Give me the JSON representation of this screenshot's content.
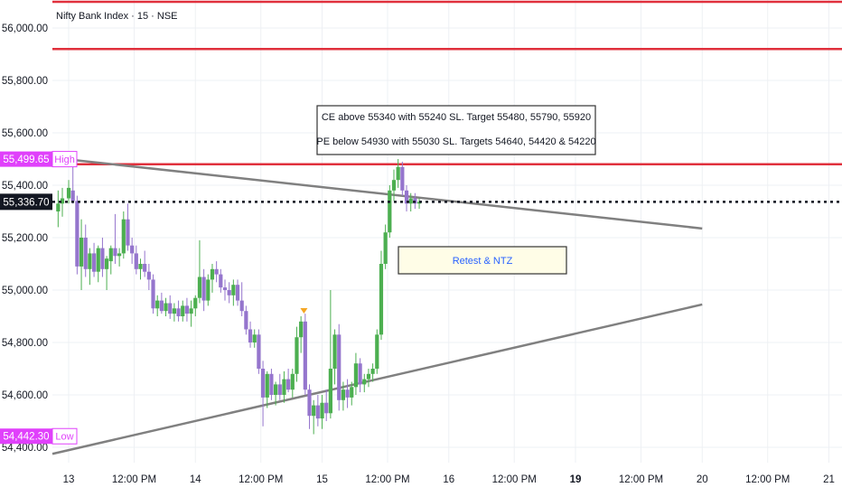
{
  "chart_data": {
    "type": "candlestick",
    "title": "Nifty Bank Index · 15 · NSE",
    "ylim": [
      54380,
      56160
    ],
    "y_ticks": [
      {
        "value": 56000,
        "label": "56,000.00"
      },
      {
        "value": 55800,
        "label": "55,800.00"
      },
      {
        "value": 55600,
        "label": "55,600.00"
      },
      {
        "value": 55400,
        "label": "55,400.00"
      },
      {
        "value": 55200,
        "label": "55,200.00"
      },
      {
        "value": 55000,
        "label": "55,000.00"
      },
      {
        "value": 54800,
        "label": "54,800.00"
      },
      {
        "value": 54600,
        "label": "54,600.00"
      },
      {
        "value": 54400,
        "label": "54,400.00"
      }
    ],
    "x_ticks": [
      {
        "t": 0.3,
        "label": "13",
        "bold": false
      },
      {
        "t": 1.85,
        "label": "12:00 PM",
        "bold": false
      },
      {
        "t": 3.3,
        "label": "14",
        "bold": false
      },
      {
        "t": 4.85,
        "label": "12:00 PM",
        "bold": false
      },
      {
        "t": 6.3,
        "label": "15",
        "bold": false
      },
      {
        "t": 7.85,
        "label": "12:00 PM",
        "bold": false
      },
      {
        "t": 9.3,
        "label": "16",
        "bold": false
      },
      {
        "t": 10.85,
        "label": "12:00 PM",
        "bold": false
      },
      {
        "t": 12.3,
        "label": "19",
        "bold": true
      },
      {
        "t": 13.85,
        "label": "12:00 PM",
        "bold": false
      },
      {
        "t": 15.3,
        "label": "20",
        "bold": false
      },
      {
        "t": 16.85,
        "label": "12:00 PM",
        "bold": false
      },
      {
        "t": 18.3,
        "label": "21",
        "bold": false
      }
    ],
    "colors": {
      "up": "#4caf50",
      "down": "#9575cd",
      "resistance": "#e0303c",
      "trendline": "#808080",
      "badge": "#e040fb",
      "current": "#131722"
    },
    "horizontal_lines": [
      {
        "y": 56100,
        "color": "#e0303c"
      },
      {
        "y": 55920,
        "color": "#e0303c"
      },
      {
        "y": 55480,
        "color": "#e0303c"
      }
    ],
    "trendlines": [
      {
        "from": [
          0.0,
          55505
        ],
        "to": [
          15.3,
          55235
        ]
      },
      {
        "from": [
          0.0,
          54375
        ],
        "to": [
          15.3,
          54945
        ]
      }
    ],
    "current_price": {
      "value": 55336.7,
      "label": "55,336.70"
    },
    "high_badge": {
      "value": 55499.65,
      "label": "55,499.65",
      "tag": "High"
    },
    "low_badge": {
      "value": 54442.3,
      "label": "54,442.30",
      "tag": "Low"
    },
    "annotations": [
      {
        "text": "CE above 55340 with 55240 SL. Target 55480, 55790, 55920"
      },
      {
        "text": "PE below 54930 with 55030 SL. Targets 54640, 54420 & 54220"
      },
      {
        "text": "Retest & NTZ"
      }
    ],
    "candles": [
      {
        "t": 0.05,
        "o": 55300,
        "h": 55380,
        "l": 55240,
        "c": 55330
      },
      {
        "t": 0.15,
        "o": 55330,
        "h": 55390,
        "l": 55280,
        "c": 55350
      },
      {
        "t": 0.3,
        "o": 55350,
        "h": 55420,
        "l": 55330,
        "c": 55390
      },
      {
        "t": 0.4,
        "o": 55380,
        "h": 55500,
        "l": 55330,
        "c": 55340
      },
      {
        "t": 0.5,
        "o": 55340,
        "h": 55360,
        "l": 55060,
        "c": 55090
      },
      {
        "t": 0.6,
        "o": 55090,
        "h": 55270,
        "l": 55000,
        "c": 55200
      },
      {
        "t": 0.7,
        "o": 55200,
        "h": 55250,
        "l": 55050,
        "c": 55080
      },
      {
        "t": 0.8,
        "o": 55080,
        "h": 55160,
        "l": 55020,
        "c": 55140
      },
      {
        "t": 0.9,
        "o": 55140,
        "h": 55180,
        "l": 55050,
        "c": 55070
      },
      {
        "t": 1.0,
        "o": 55070,
        "h": 55170,
        "l": 55030,
        "c": 55160
      },
      {
        "t": 1.1,
        "o": 55160,
        "h": 55200,
        "l": 55050,
        "c": 55080
      },
      {
        "t": 1.2,
        "o": 55080,
        "h": 55130,
        "l": 55000,
        "c": 55120
      },
      {
        "t": 1.3,
        "o": 55110,
        "h": 55170,
        "l": 55060,
        "c": 55160
      },
      {
        "t": 1.4,
        "o": 55160,
        "h": 55290,
        "l": 55100,
        "c": 55130
      },
      {
        "t": 1.5,
        "o": 55130,
        "h": 55160,
        "l": 55090,
        "c": 55140
      },
      {
        "t": 1.6,
        "o": 55140,
        "h": 55300,
        "l": 55120,
        "c": 55270
      },
      {
        "t": 1.7,
        "o": 55270,
        "h": 55330,
        "l": 55150,
        "c": 55170
      },
      {
        "t": 1.8,
        "o": 55170,
        "h": 55200,
        "l": 55100,
        "c": 55140
      },
      {
        "t": 1.9,
        "o": 55140,
        "h": 55170,
        "l": 55060,
        "c": 55080
      },
      {
        "t": 2.0,
        "o": 55080,
        "h": 55120,
        "l": 55040,
        "c": 55100
      },
      {
        "t": 2.1,
        "o": 55100,
        "h": 55150,
        "l": 55050,
        "c": 55070
      },
      {
        "t": 2.2,
        "o": 55070,
        "h": 55100,
        "l": 55000,
        "c": 55040
      },
      {
        "t": 2.3,
        "o": 55040,
        "h": 55060,
        "l": 54910,
        "c": 54930
      },
      {
        "t": 2.4,
        "o": 54930,
        "h": 54980,
        "l": 54900,
        "c": 54960
      },
      {
        "t": 2.5,
        "o": 54960,
        "h": 54990,
        "l": 54910,
        "c": 54920
      },
      {
        "t": 2.6,
        "o": 54920,
        "h": 54970,
        "l": 54900,
        "c": 54950
      },
      {
        "t": 2.7,
        "o": 54950,
        "h": 54980,
        "l": 54890,
        "c": 54910
      },
      {
        "t": 2.8,
        "o": 54910,
        "h": 54950,
        "l": 54880,
        "c": 54930
      },
      {
        "t": 2.9,
        "o": 54930,
        "h": 54960,
        "l": 54880,
        "c": 54900
      },
      {
        "t": 3.0,
        "o": 54900,
        "h": 54960,
        "l": 54880,
        "c": 54940
      },
      {
        "t": 3.1,
        "o": 54940,
        "h": 54970,
        "l": 54880,
        "c": 54910
      },
      {
        "t": 3.2,
        "o": 54910,
        "h": 54960,
        "l": 54860,
        "c": 54930
      },
      {
        "t": 3.3,
        "o": 54930,
        "h": 54980,
        "l": 54900,
        "c": 54970
      },
      {
        "t": 3.4,
        "o": 54970,
        "h": 55190,
        "l": 54950,
        "c": 55050
      },
      {
        "t": 3.5,
        "o": 55050,
        "h": 55080,
        "l": 54920,
        "c": 54960
      },
      {
        "t": 3.6,
        "o": 54960,
        "h": 55060,
        "l": 54940,
        "c": 55040
      },
      {
        "t": 3.7,
        "o": 55040,
        "h": 55100,
        "l": 54990,
        "c": 55080
      },
      {
        "t": 3.8,
        "o": 55080,
        "h": 55110,
        "l": 55030,
        "c": 55060
      },
      {
        "t": 3.9,
        "o": 55060,
        "h": 55080,
        "l": 54990,
        "c": 55010
      },
      {
        "t": 4.0,
        "o": 55010,
        "h": 55040,
        "l": 54960,
        "c": 55000
      },
      {
        "t": 4.1,
        "o": 55000,
        "h": 55030,
        "l": 54950,
        "c": 54980
      },
      {
        "t": 4.2,
        "o": 54980,
        "h": 55040,
        "l": 54940,
        "c": 55020
      },
      {
        "t": 4.3,
        "o": 55020,
        "h": 55040,
        "l": 54940,
        "c": 54960
      },
      {
        "t": 4.4,
        "o": 54960,
        "h": 55030,
        "l": 54900,
        "c": 54920
      },
      {
        "t": 4.5,
        "o": 54920,
        "h": 54940,
        "l": 54830,
        "c": 54850
      },
      {
        "t": 4.6,
        "o": 54850,
        "h": 54880,
        "l": 54780,
        "c": 54800
      },
      {
        "t": 4.7,
        "o": 54800,
        "h": 54850,
        "l": 54780,
        "c": 54830
      },
      {
        "t": 4.8,
        "o": 54830,
        "h": 54850,
        "l": 54680,
        "c": 54700
      },
      {
        "t": 4.9,
        "o": 54700,
        "h": 54730,
        "l": 54480,
        "c": 54590
      },
      {
        "t": 5.0,
        "o": 54590,
        "h": 54690,
        "l": 54550,
        "c": 54680
      },
      {
        "t": 5.1,
        "o": 54680,
        "h": 54700,
        "l": 54580,
        "c": 54600
      },
      {
        "t": 5.2,
        "o": 54600,
        "h": 54650,
        "l": 54560,
        "c": 54640
      },
      {
        "t": 5.3,
        "o": 54640,
        "h": 54680,
        "l": 54580,
        "c": 54600
      },
      {
        "t": 5.4,
        "o": 54600,
        "h": 54690,
        "l": 54570,
        "c": 54660
      },
      {
        "t": 5.5,
        "o": 54660,
        "h": 54700,
        "l": 54610,
        "c": 54620
      },
      {
        "t": 5.6,
        "o": 54620,
        "h": 54700,
        "l": 54590,
        "c": 54680
      },
      {
        "t": 5.7,
        "o": 54680,
        "h": 54860,
        "l": 54650,
        "c": 54820
      },
      {
        "t": 5.8,
        "o": 54820,
        "h": 54900,
        "l": 54760,
        "c": 54880
      },
      {
        "t": 5.9,
        "o": 54880,
        "h": 54910,
        "l": 54600,
        "c": 54620
      },
      {
        "t": 6.0,
        "o": 54620,
        "h": 54640,
        "l": 54470,
        "c": 54520
      },
      {
        "t": 6.1,
        "o": 54520,
        "h": 54580,
        "l": 54450,
        "c": 54560
      },
      {
        "t": 6.2,
        "o": 54560,
        "h": 54600,
        "l": 54480,
        "c": 54510
      },
      {
        "t": 6.3,
        "o": 54510,
        "h": 54600,
        "l": 54470,
        "c": 54570
      },
      {
        "t": 6.4,
        "o": 54570,
        "h": 54620,
        "l": 54500,
        "c": 54530
      },
      {
        "t": 6.5,
        "o": 54530,
        "h": 55000,
        "l": 54510,
        "c": 54700
      },
      {
        "t": 6.6,
        "o": 54700,
        "h": 54850,
        "l": 54640,
        "c": 54830
      },
      {
        "t": 6.7,
        "o": 54830,
        "h": 54870,
        "l": 54540,
        "c": 54580
      },
      {
        "t": 6.8,
        "o": 54580,
        "h": 54650,
        "l": 54540,
        "c": 54620
      },
      {
        "t": 6.9,
        "o": 54620,
        "h": 54660,
        "l": 54550,
        "c": 54590
      },
      {
        "t": 7.0,
        "o": 54590,
        "h": 54650,
        "l": 54560,
        "c": 54630
      },
      {
        "t": 7.1,
        "o": 54630,
        "h": 54760,
        "l": 54600,
        "c": 54720
      },
      {
        "t": 7.2,
        "o": 54720,
        "h": 54740,
        "l": 54610,
        "c": 54640
      },
      {
        "t": 7.3,
        "o": 54640,
        "h": 54680,
        "l": 54610,
        "c": 54660
      },
      {
        "t": 7.4,
        "o": 54660,
        "h": 54700,
        "l": 54630,
        "c": 54680
      },
      {
        "t": 7.5,
        "o": 54680,
        "h": 54720,
        "l": 54650,
        "c": 54700
      },
      {
        "t": 7.6,
        "o": 54700,
        "h": 54850,
        "l": 54680,
        "c": 54830
      },
      {
        "t": 7.7,
        "o": 54830,
        "h": 55150,
        "l": 54810,
        "c": 55100
      },
      {
        "t": 7.8,
        "o": 55100,
        "h": 55250,
        "l": 55080,
        "c": 55220
      },
      {
        "t": 7.9,
        "o": 55220,
        "h": 55400,
        "l": 55200,
        "c": 55380
      },
      {
        "t": 8.0,
        "o": 55380,
        "h": 55460,
        "l": 55340,
        "c": 55420
      },
      {
        "t": 8.1,
        "o": 55420,
        "h": 55500,
        "l": 55390,
        "c": 55470
      },
      {
        "t": 8.2,
        "o": 55470,
        "h": 55490,
        "l": 55360,
        "c": 55380
      },
      {
        "t": 8.3,
        "o": 55380,
        "h": 55400,
        "l": 55300,
        "c": 55330
      },
      {
        "t": 8.4,
        "o": 55330,
        "h": 55370,
        "l": 55300,
        "c": 55350
      },
      {
        "t": 8.5,
        "o": 55350,
        "h": 55370,
        "l": 55310,
        "c": 55330
      },
      {
        "t": 8.6,
        "o": 55330,
        "h": 55350,
        "l": 55310,
        "c": 55336.7
      }
    ]
  }
}
